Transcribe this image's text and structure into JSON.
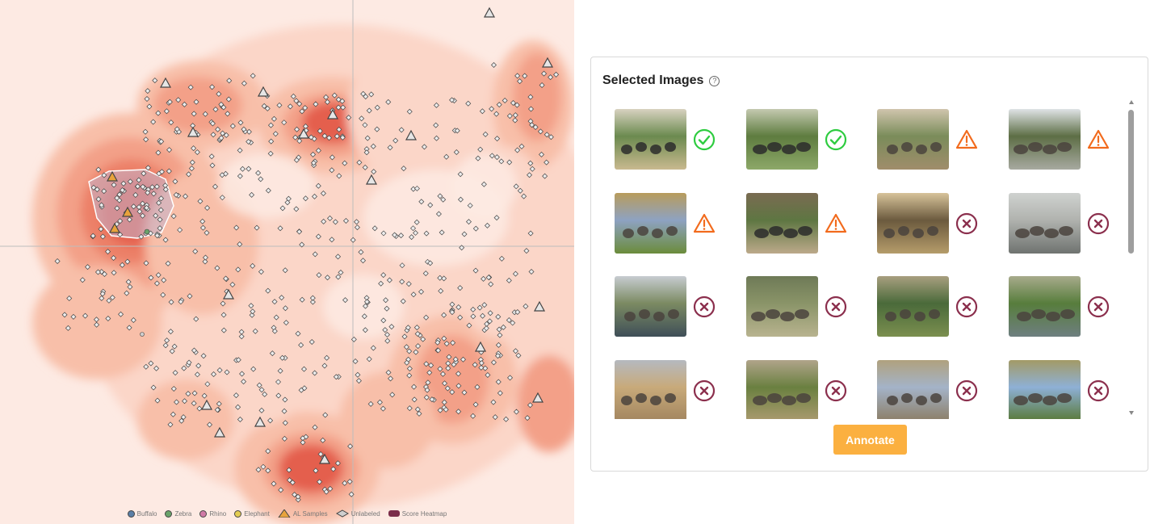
{
  "panel": {
    "title": "Selected Images",
    "help_icon": "question-circle-icon",
    "annotate_label": "Annotate"
  },
  "legend": [
    {
      "label": "Buffalo",
      "color": "#5b7fa6",
      "kind": "dot"
    },
    {
      "label": "Zebra",
      "color": "#6aa36a",
      "kind": "dot"
    },
    {
      "label": "Rhino",
      "color": "#d07aa6",
      "kind": "dot"
    },
    {
      "label": "Elephant",
      "color": "#e3cc52",
      "kind": "dot"
    },
    {
      "label": "AL Samples",
      "color": "#e8a33c",
      "kind": "triangle"
    },
    {
      "label": "Unlabeled",
      "color": "#cfcfcf",
      "kind": "diamond"
    },
    {
      "label": "Score Heatmap",
      "color": "#7b2d4a",
      "kind": "box"
    }
  ],
  "colors": {
    "heat_levels": [
      "#fdeae3",
      "#fbd6c8",
      "#f8bfa9",
      "#f3a088",
      "#ec8068",
      "#e45f4d",
      "#d94840"
    ],
    "check": "#2ecc40",
    "warning": "#f26b1d",
    "error": "#8b2f4d",
    "annotate_button": "#fbb040"
  },
  "images": [
    {
      "scene": "zebras grazing",
      "status": "check-circle-icon"
    },
    {
      "scene": "zebra on rock",
      "status": "check-circle-icon"
    },
    {
      "scene": "elephant and person",
      "status": "warning-triangle-icon"
    },
    {
      "scene": "elephants at waterhole",
      "status": "warning-triangle-icon"
    },
    {
      "scene": "savanna with tree",
      "status": "warning-triangle-icon"
    },
    {
      "scene": "zebras near fence",
      "status": "warning-triangle-icon"
    },
    {
      "scene": "buffalo and zebras",
      "status": "x-circle-icon"
    },
    {
      "scene": "elephants crossing river",
      "status": "x-circle-icon"
    },
    {
      "scene": "herd by river",
      "status": "x-circle-icon"
    },
    {
      "scene": "animals in wetland",
      "status": "x-circle-icon"
    },
    {
      "scene": "elephants on grass",
      "status": "x-circle-icon"
    },
    {
      "scene": "animals at river bank",
      "status": "x-circle-icon"
    },
    {
      "scene": "elephants in dunes",
      "status": "x-circle-icon"
    },
    {
      "scene": "elephant family",
      "status": "x-circle-icon"
    },
    {
      "scene": "elephant lying",
      "status": "x-circle-icon"
    },
    {
      "scene": "elephants under tree",
      "status": "x-circle-icon"
    }
  ]
}
